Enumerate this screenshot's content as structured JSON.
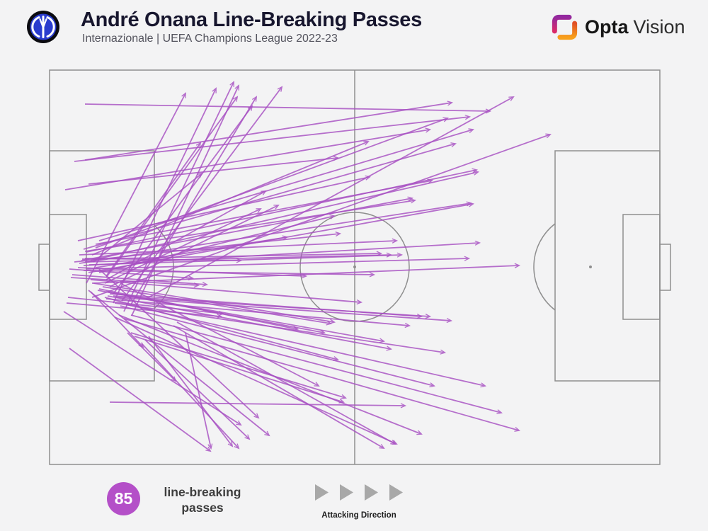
{
  "colors": {
    "accent": "#a851c3",
    "badge": "#b44fc8",
    "pitch_line": "#8f8f8f",
    "background": "#f3f3f4",
    "title_text": "#17162e",
    "opta_magenta": "#b52886",
    "opta_orange": "#f8961d",
    "inter_blue": "#2a3cce"
  },
  "header": {
    "club_badge": "inter-milan-badge",
    "title": "André Onana Line-Breaking Passes",
    "subtitle": "Internazionale | UEFA Champions League 2022-23"
  },
  "brand": {
    "icon": "opta-bracket-icon",
    "name_bold": "Opta",
    "name_light": "Vision"
  },
  "footer": {
    "stat_value": "85",
    "stat_label": "line-breaking passes",
    "direction_label": "Attacking Direction",
    "direction_icon": "four-right-triangles"
  },
  "chart_data": {
    "type": "scatter",
    "subtype": "pass-map",
    "title": "André Onana Line-Breaking Passes",
    "legend_position": "bottom",
    "grid": false,
    "total_passes": 85,
    "coordinate_system": "screenshot pixels; pitch rectangle x:[70,932] y:[99,656]; attacking direction left-to-right",
    "passes": [
      [
        122,
        400,
        262,
        132
      ],
      [
        160,
        428,
        305,
        125
      ],
      [
        175,
        440,
        330,
        116
      ],
      [
        186,
        446,
        337,
        121
      ],
      [
        150,
        392,
        335,
        137
      ],
      [
        185,
        430,
        362,
        137
      ],
      [
        172,
        425,
        398,
        123
      ],
      [
        150,
        390,
        283,
        202
      ],
      [
        132,
        370,
        285,
        245
      ],
      [
        125,
        260,
        477,
        223
      ],
      [
        150,
        395,
        375,
        270
      ],
      [
        148,
        400,
        368,
        295
      ],
      [
        155,
        405,
        393,
        290
      ],
      [
        140,
        385,
        472,
        305
      ],
      [
        135,
        378,
        405,
        335
      ],
      [
        120,
        365,
        340,
        368
      ],
      [
        130,
        360,
        520,
        200
      ],
      [
        160,
        415,
        356,
        150
      ],
      [
        120,
        226,
        638,
        145
      ],
      [
        210,
        420,
        725,
        137
      ],
      [
        120,
        147,
        692,
        157
      ],
      [
        105,
        228,
        663,
        165
      ],
      [
        135,
        350,
        632,
        167
      ],
      [
        92,
        268,
        607,
        183
      ],
      [
        140,
        340,
        668,
        183
      ],
      [
        130,
        420,
        777,
        190
      ],
      [
        118,
        352,
        643,
        203
      ],
      [
        122,
        356,
        673,
        240
      ],
      [
        128,
        368,
        675,
        243
      ],
      [
        110,
        340,
        522,
        250
      ],
      [
        115,
        368,
        582,
        280
      ],
      [
        112,
        372,
        665,
        287
      ],
      [
        125,
        385,
        668,
        288
      ],
      [
        120,
        355,
        586,
        283
      ],
      [
        135,
        345,
        610,
        255
      ],
      [
        118,
        375,
        677,
        343
      ],
      [
        122,
        380,
        662,
        365
      ],
      [
        130,
        400,
        733,
        375
      ],
      [
        112,
        360,
        560,
        340
      ],
      [
        116,
        366,
        538,
        358
      ],
      [
        120,
        370,
        552,
        360
      ],
      [
        126,
        374,
        567,
        360
      ],
      [
        118,
        382,
        528,
        388
      ],
      [
        110,
        378,
        432,
        390
      ],
      [
        105,
        370,
        480,
        330
      ],
      [
        98,
        380,
        272,
        393
      ],
      [
        102,
        388,
        292,
        402
      ],
      [
        100,
        392,
        280,
        403
      ],
      [
        128,
        395,
        510,
        427
      ],
      [
        132,
        400,
        472,
        455
      ],
      [
        96,
        420,
        315,
        443
      ],
      [
        140,
        408,
        420,
        465
      ],
      [
        145,
        405,
        467,
        457
      ],
      [
        138,
        410,
        458,
        470
      ],
      [
        150,
        412,
        542,
        482
      ],
      [
        152,
        418,
        552,
        493
      ],
      [
        148,
        420,
        477,
        508
      ],
      [
        94,
        428,
        312,
        447
      ],
      [
        128,
        412,
        202,
        490
      ],
      [
        180,
        470,
        248,
        538
      ],
      [
        155,
        415,
        595,
        447
      ],
      [
        160,
        418,
        607,
        447
      ],
      [
        165,
        420,
        637,
        453
      ],
      [
        150,
        422,
        578,
        460
      ],
      [
        162,
        428,
        628,
        498
      ],
      [
        170,
        432,
        613,
        545
      ],
      [
        178,
        430,
        685,
        545
      ],
      [
        155,
        568,
        572,
        573
      ],
      [
        185,
        445,
        708,
        583
      ],
      [
        175,
        450,
        733,
        608
      ],
      [
        168,
        445,
        595,
        613
      ],
      [
        162,
        448,
        560,
        627
      ],
      [
        170,
        400,
        450,
        545
      ],
      [
        185,
        470,
        488,
        562
      ],
      [
        190,
        475,
        485,
        568
      ],
      [
        205,
        480,
        352,
        620
      ],
      [
        200,
        485,
        337,
        633
      ],
      [
        262,
        470,
        298,
        633
      ],
      [
        98,
        492,
        297,
        637
      ],
      [
        210,
        475,
        328,
        630
      ],
      [
        245,
        460,
        542,
        633
      ],
      [
        250,
        455,
        558,
        627
      ],
      [
        140,
        380,
        365,
        590
      ],
      [
        90,
        440,
        340,
        600
      ],
      [
        125,
        410,
        380,
        615
      ]
    ]
  }
}
